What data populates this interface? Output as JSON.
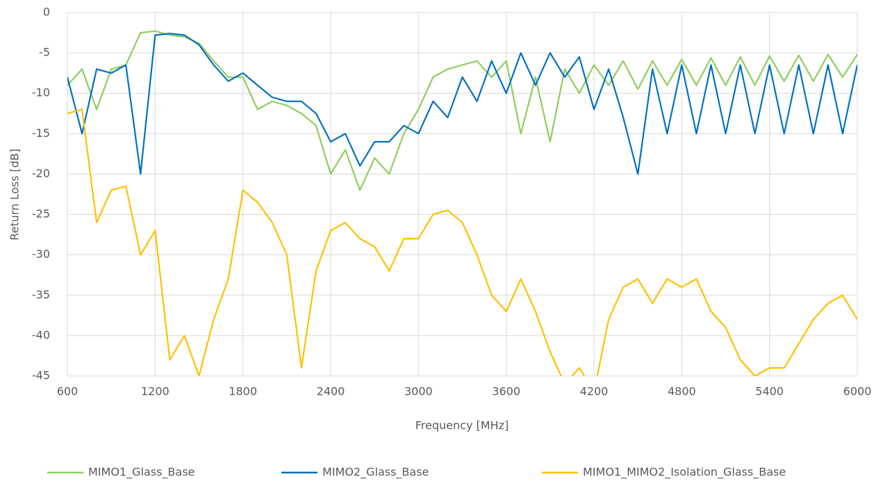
{
  "chart_data": {
    "type": "line",
    "x_label": "Frequency [MHz]",
    "y_label": "Return Loss [dB]",
    "x": [
      600,
      700,
      800,
      900,
      1000,
      1100,
      1200,
      1300,
      1400,
      1500,
      1600,
      1700,
      1800,
      1900,
      2000,
      2100,
      2200,
      2300,
      2400,
      2500,
      2600,
      2700,
      2800,
      2900,
      3000,
      3100,
      3200,
      3300,
      3400,
      3500,
      3600,
      3700,
      3800,
      3900,
      4000,
      4100,
      4200,
      4300,
      4400,
      4500,
      4600,
      4700,
      4800,
      4900,
      5000,
      5100,
      5200,
      5300,
      5400,
      5500,
      5600,
      5700,
      5800,
      5900,
      6000
    ],
    "series": [
      {
        "name": "MIMO1_Glass_Base",
        "color": "#8fce5c",
        "values": [
          -9,
          -7,
          -12,
          -7,
          -6.5,
          -2.5,
          -2.3,
          -2.8,
          -3,
          -3.8,
          -6,
          -8,
          -8,
          -12,
          -11,
          -11.5,
          -12.5,
          -14,
          -20,
          -17,
          -22,
          -18,
          -20,
          -15,
          -12,
          -8,
          -7,
          -6.5,
          -6,
          -8,
          -6,
          -15,
          -8,
          -16,
          -7,
          -10,
          -6.5,
          -9,
          -6,
          -9.5,
          -6,
          -9,
          -5.8,
          -9,
          -5.6,
          -9,
          -5.5,
          -9,
          -5.4,
          -8.5,
          -5.3,
          -8.5,
          -5.2,
          -8,
          -5.2
        ]
      },
      {
        "name": "MIMO2_Glass_Base",
        "color": "#0070c0",
        "values": [
          -8,
          -15,
          -7,
          -7.5,
          -6.5,
          -20,
          -2.8,
          -2.6,
          -2.8,
          -4,
          -6.5,
          -8.5,
          -7.5,
          -9,
          -10.5,
          -11,
          -11,
          -12.5,
          -16,
          -15,
          -19,
          -16,
          -16,
          -14,
          -15,
          -11,
          -13,
          -8,
          -11,
          -6,
          -10,
          -5,
          -9,
          -5,
          -8,
          -5.5,
          -12,
          -7,
          -13,
          -20,
          -7,
          -15,
          -6.5,
          -15,
          -6.5,
          -15,
          -6.5,
          -15,
          -6.5,
          -15,
          -6.5,
          -15,
          -6.5,
          -15,
          -6.5
        ]
      },
      {
        "name": "MIMO1_MIMO2_Isolation_Glass_Base",
        "color": "#ffc000",
        "values": [
          -12.5,
          -12,
          -26,
          -22,
          -21.5,
          -30,
          -27,
          -43,
          -40,
          -45,
          -38,
          -33,
          -22,
          -23.5,
          -26,
          -30,
          -44,
          -32,
          -27,
          -26,
          -28,
          -29,
          -32,
          -28,
          -28,
          -25,
          -24.5,
          -26,
          -30,
          -35,
          -37,
          -33,
          -37,
          -42,
          -46,
          -44,
          -47,
          -38,
          -34,
          -33,
          -36,
          -33,
          -34,
          -33,
          -37,
          -39,
          -43,
          -45,
          -44,
          -44,
          -41,
          -38,
          -36,
          -35,
          -38
        ]
      }
    ],
    "xlim": [
      600,
      6000
    ],
    "xticks": [
      600,
      1200,
      1800,
      2400,
      3000,
      3600,
      4200,
      4800,
      5400,
      6000
    ],
    "ylim": [
      -45,
      0
    ],
    "yticks": [
      0,
      -5,
      -10,
      -15,
      -20,
      -25,
      -30,
      -35,
      -40,
      -45
    ],
    "grid": true,
    "legend": "bottom"
  }
}
